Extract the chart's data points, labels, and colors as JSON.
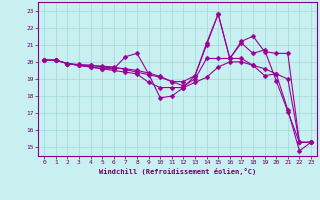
{
  "xlabel": "Windchill (Refroidissement éolien,°C)",
  "background_color": "#c8f0f0",
  "line_color": "#990099",
  "grid_color": "#a0d8d8",
  "xlim": [
    -0.5,
    23.5
  ],
  "ylim": [
    14.5,
    23.5
  ],
  "yticks": [
    15,
    16,
    17,
    18,
    19,
    20,
    21,
    22,
    23
  ],
  "xticks": [
    0,
    1,
    2,
    3,
    4,
    5,
    6,
    7,
    8,
    9,
    10,
    11,
    12,
    13,
    14,
    15,
    16,
    17,
    18,
    19,
    20,
    21,
    22,
    23
  ],
  "series": [
    [
      20.1,
      20.1,
      19.9,
      19.8,
      19.7,
      19.6,
      19.6,
      20.3,
      20.5,
      19.3,
      17.9,
      18.0,
      18.5,
      19.2,
      21.0,
      22.8,
      20.2,
      21.1,
      20.5,
      20.7,
      18.9,
      17.1,
      15.3,
      15.3
    ],
    [
      20.1,
      20.1,
      19.9,
      19.8,
      19.7,
      19.6,
      19.5,
      19.4,
      19.3,
      18.8,
      18.5,
      18.5,
      18.5,
      18.8,
      19.1,
      19.7,
      20.0,
      20.0,
      19.8,
      19.6,
      19.3,
      19.0,
      15.3,
      15.3
    ],
    [
      20.1,
      20.1,
      19.9,
      19.8,
      19.8,
      19.7,
      19.65,
      19.6,
      19.5,
      19.35,
      19.15,
      18.85,
      18.6,
      19.0,
      20.2,
      20.2,
      20.2,
      21.2,
      21.5,
      20.6,
      20.5,
      20.5,
      15.3,
      15.3
    ],
    [
      20.1,
      20.1,
      19.9,
      19.85,
      19.8,
      19.75,
      19.7,
      19.55,
      19.4,
      19.25,
      19.1,
      18.85,
      18.85,
      19.2,
      21.1,
      22.8,
      20.2,
      20.2,
      19.8,
      19.2,
      19.3,
      17.2,
      14.8,
      15.3
    ]
  ]
}
